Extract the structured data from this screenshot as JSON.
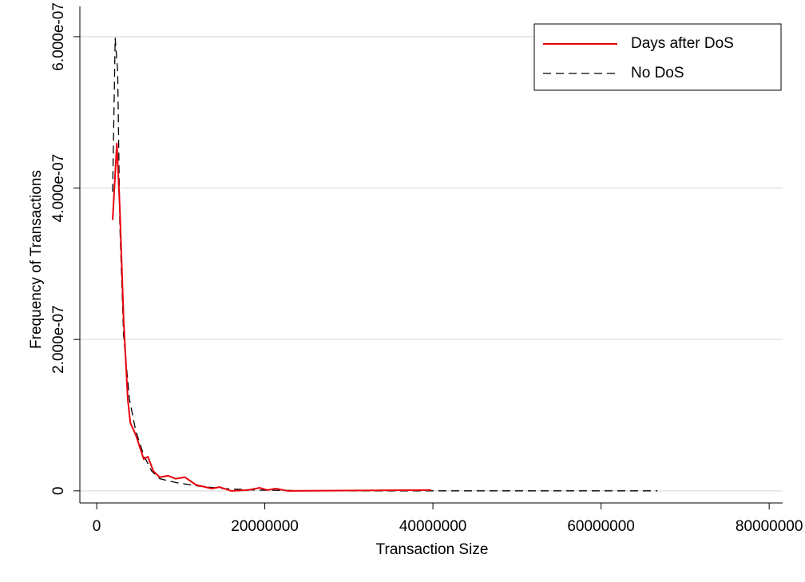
{
  "chart_data": {
    "type": "line",
    "x_label": "Transaction Size",
    "y_label": "Frequency of Transactions",
    "xlim": [
      -2000000,
      81600000
    ],
    "ylim": [
      -1.6e-08,
      6.4e-07
    ],
    "xticks": [
      0,
      20000000,
      40000000,
      60000000,
      80000000
    ],
    "yticks": [
      0,
      {
        "value": 2e-07,
        "label": "2.000e-07"
      },
      {
        "value": 4e-07,
        "label": "4.000e-07"
      },
      {
        "value": 6e-07,
        "label": "6.000e-07"
      }
    ],
    "grid": true,
    "legend_position": "upper right",
    "series": [
      {
        "name": "Days after DoS",
        "color": "#e8000b",
        "line_style": "solid",
        "x": [
          1900000,
          2400000,
          2750000,
          3200000,
          3700000,
          4000000,
          4650000,
          5600000,
          6100000,
          6750000,
          7500000,
          8500000,
          9400000,
          10500000,
          11800000,
          13700000,
          14600000,
          16000000,
          18000000,
          19400000,
          20300000,
          21300000,
          22700000,
          39800000
        ],
        "values": [
          3.58e-07,
          4.59e-07,
          3.74e-07,
          2.27e-07,
          1.21e-07,
          9e-08,
          7.4e-08,
          4.2e-08,
          4.5e-08,
          2.6e-08,
          1.8e-08,
          2e-08,
          1.6e-08,
          1.8e-08,
          8e-09,
          3e-09,
          5e-09,
          0,
          1e-09,
          4e-09,
          1e-09,
          3e-09,
          0,
          1e-09
        ]
      },
      {
        "name": "No DoS",
        "color": "#000000",
        "line_style": "dashed",
        "x": [
          1900000,
          2200000,
          2500000,
          2750000,
          3200000,
          3900000,
          4650000,
          5600000,
          6550000,
          7500000,
          9400000,
          12300000,
          15100000,
          18900000,
          26500000,
          66700000
        ],
        "values": [
          3.95e-07,
          5.98e-07,
          5.54e-07,
          3.53e-07,
          2.06e-07,
          1.21e-07,
          7.9e-08,
          4.7e-08,
          2.6e-08,
          1.6e-08,
          1.1e-08,
          6e-09,
          3e-09,
          1e-09,
          0,
          0
        ]
      }
    ]
  }
}
